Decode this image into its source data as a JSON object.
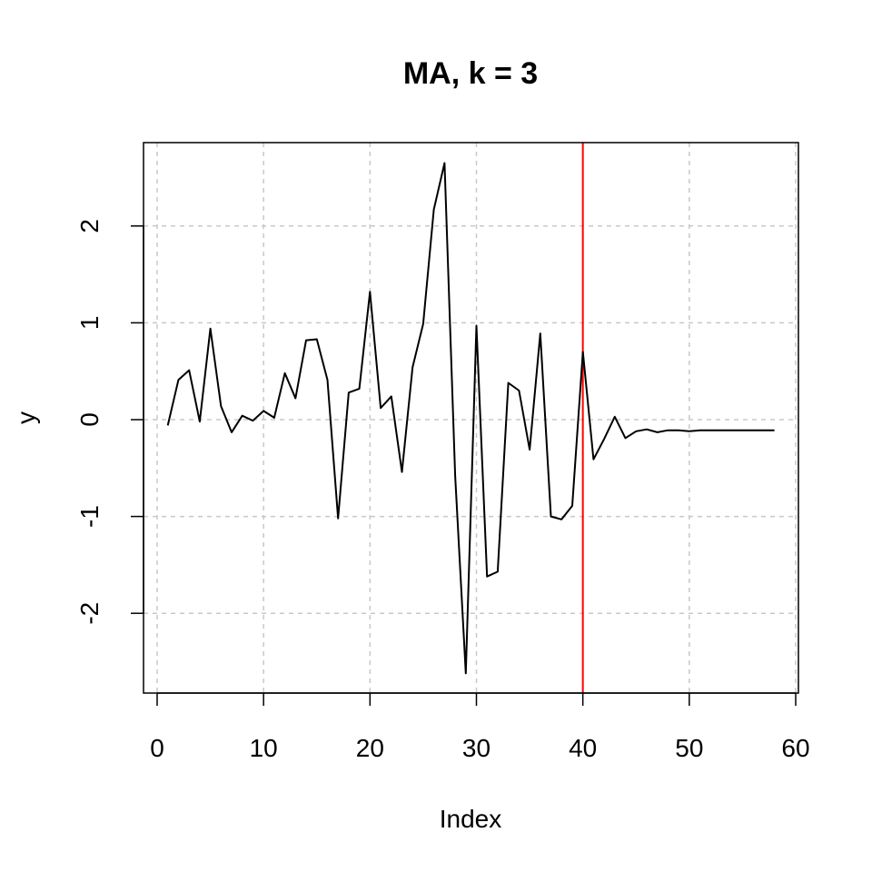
{
  "chart_data": {
    "type": "line",
    "title": "MA, k = 3",
    "xlabel": "Index",
    "ylabel": "y",
    "xlim": [
      0,
      60
    ],
    "ylim": [
      -2.6,
      2.7
    ],
    "xticks": [
      0,
      10,
      20,
      30,
      40,
      50,
      60
    ],
    "xtick_labels": [
      "0",
      "10",
      "20",
      "30",
      "40",
      "50",
      "60"
    ],
    "yticks": [
      -2,
      -1,
      0,
      1,
      2
    ],
    "ytick_labels": [
      "-2",
      "-1",
      "0",
      "1",
      "2"
    ],
    "grid": true,
    "series": [
      {
        "color": "#000000",
        "x": [
          1,
          2,
          3,
          4,
          5,
          6,
          7,
          8,
          9,
          10,
          11,
          12,
          13,
          14,
          15,
          16,
          17,
          18,
          19,
          20,
          21,
          22,
          23,
          24,
          25,
          26,
          27,
          28,
          29,
          30,
          31,
          32,
          33,
          34,
          35,
          36,
          37,
          38,
          39,
          40,
          41,
          42,
          43,
          44,
          45,
          46,
          47,
          48,
          49,
          50,
          51,
          52,
          53,
          54,
          55,
          56,
          57,
          58
        ],
        "values": [
          -0.06,
          0.41,
          0.51,
          -0.02,
          0.94,
          0.14,
          -0.13,
          0.04,
          -0.01,
          0.09,
          0.02,
          0.48,
          0.22,
          0.82,
          0.83,
          0.41,
          -1.02,
          0.28,
          0.32,
          1.32,
          0.12,
          0.24,
          -0.54,
          0.54,
          0.99,
          2.17,
          2.65,
          -0.58,
          -2.62,
          0.97,
          -1.62,
          -1.57,
          0.38,
          0.3,
          -0.31,
          0.89,
          -1.0,
          -1.03,
          -0.89,
          0.7,
          -0.41,
          -0.2,
          0.03,
          -0.19,
          -0.12,
          -0.1,
          -0.13,
          -0.11,
          -0.11,
          -0.12,
          -0.11,
          -0.11,
          -0.11,
          -0.11,
          -0.11,
          -0.11,
          -0.11,
          -0.11
        ]
      }
    ],
    "vline": {
      "x": 40,
      "color": "#ff0000"
    }
  }
}
